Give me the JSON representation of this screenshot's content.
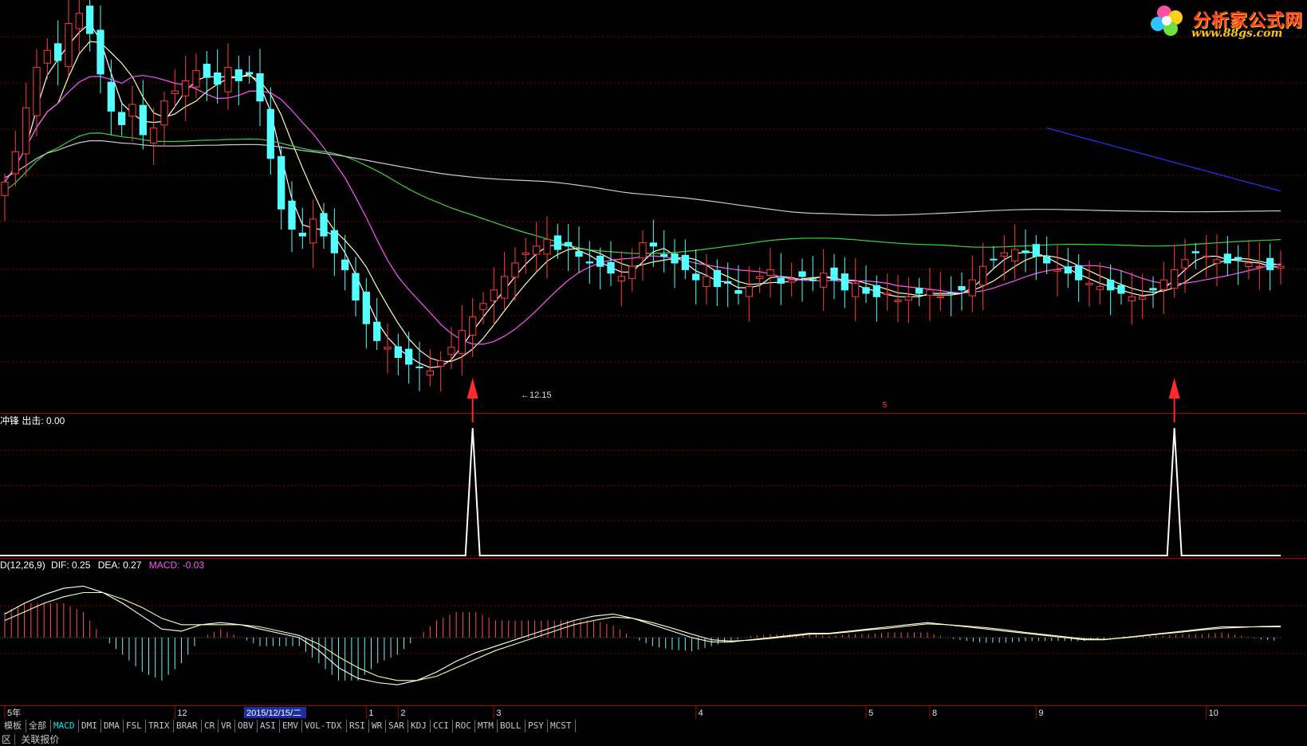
{
  "logo": {
    "brand": "分析家公式网",
    "url": "www.88gs.com"
  },
  "indicator_label": "冲锋 出击: 0.00",
  "macd_label": {
    "name": "D(12,26,9)",
    "dif": "DIF: 0.25",
    "dea": "DEA: 0.27",
    "macd": "MACD: -0.03"
  },
  "annotations": {
    "low_price": "←12.15",
    "marker": "S"
  },
  "xaxis": {
    "ticks": [
      {
        "label": "5年",
        "idx": 0
      },
      {
        "label": "12",
        "idx": 16
      },
      {
        "label": "1",
        "idx": 34
      },
      {
        "label": "2",
        "idx": 37
      },
      {
        "label": "3",
        "idx": 46
      },
      {
        "label": "4",
        "idx": 65
      },
      {
        "label": "5",
        "idx": 81
      },
      {
        "label": "8",
        "idx": 87
      },
      {
        "label": "9",
        "idx": 97
      },
      {
        "label": "10",
        "idx": 113
      }
    ],
    "cursor_date": "2015/12/15/二"
  },
  "tabs": [
    "模板",
    "全部",
    "MACD",
    "DMI",
    "DMA",
    "FSL",
    "TRIX",
    "BRAR",
    "CR",
    "VR",
    "OBV",
    "ASI",
    "EMV",
    "VOL-TDX",
    "RSI",
    "WR",
    "SAR",
    "KDJ",
    "CCI",
    "ROC",
    "MTM",
    "BOLL",
    "PSY",
    "MCST"
  ],
  "active_tab": "MACD",
  "status": [
    "区",
    "关联报价"
  ],
  "colors": {
    "up": "#ff3b3b",
    "down": "#54ffff",
    "ma5": "#ffffff",
    "ma10": "#ffffaa",
    "ma20": "#ff55ff",
    "ma60": "#3cd23c",
    "ma120": "#c8c8c8",
    "ma250": "#3030ff",
    "grid": "#8b0000",
    "dea": "#ffffaa",
    "signal_arrow": "#ff2b2b"
  },
  "chart_data": [
    {
      "type": "candlestick",
      "ylim": [
        11.5,
        23.5
      ],
      "ma_lines": [
        "MA5",
        "MA10",
        "MA20",
        "MA60",
        "MA120",
        "MA250"
      ],
      "closes": [
        18.2,
        19.1,
        20.4,
        21.6,
        22.1,
        21.8,
        22.9,
        23.2,
        22.6,
        21.4,
        20.3,
        19.9,
        20.5,
        19.6,
        19.8,
        20.6,
        20.9,
        21.2,
        21.5,
        21.3,
        21.1,
        21.6,
        21.2,
        21.4,
        20.6,
        18.9,
        17.4,
        16.8,
        16.6,
        17.1,
        16.6,
        16.1,
        15.6,
        14.7,
        14.0,
        13.5,
        13.3,
        13.0,
        12.8,
        12.7,
        12.6,
        12.9,
        13.3,
        13.8,
        14.2,
        14.6,
        15.0,
        15.4,
        15.8,
        16.1,
        16.3,
        16.5,
        16.2,
        16.3,
        16.0,
        15.8,
        15.7,
        15.5,
        15.4,
        15.7,
        16.4,
        16.3,
        16.0,
        15.8,
        15.6,
        15.3,
        15.4,
        15.1,
        15.2,
        14.9,
        15.1,
        15.4,
        15.6,
        15.2,
        15.3,
        15.4,
        15.3,
        15.5,
        15.3,
        15.0,
        15.2,
        14.9,
        14.8,
        14.9,
        14.7,
        14.8,
        14.9,
        15.0,
        14.8,
        14.9,
        15.0,
        15.3,
        15.7,
        15.9,
        16.1,
        16.2,
        16.1,
        16.0,
        15.8,
        15.6,
        15.5,
        15.3,
        15.2,
        15.1,
        15.0,
        14.9,
        14.8,
        14.8,
        15.0,
        15.3,
        15.6,
        15.9,
        16.1,
        16.0,
        15.9,
        15.8,
        15.9,
        15.8,
        15.7,
        15.6,
        15.7
      ],
      "low_annotation": 12.15,
      "signal_bars": [
        44,
        110
      ]
    },
    {
      "type": "line",
      "name": "冲锋",
      "ylim": [
        0,
        1
      ],
      "values_description": "zero everywhere except spikes",
      "spikes": [
        44,
        110
      ]
    },
    {
      "type": "bar",
      "name": "MACD",
      "ylim": [
        -1.3,
        1.3
      ],
      "dif": [
        0.55,
        0.8,
        1.0,
        1.15,
        1.2,
        1.05,
        0.8,
        0.5,
        0.2,
        0.15,
        0.3,
        0.35,
        0.3,
        0.2,
        0.1,
        0.0,
        -0.3,
        -0.7,
        -0.95,
        -1.05,
        -1.1,
        -1.0,
        -0.8,
        -0.55,
        -0.35,
        -0.2,
        -0.05,
        0.1,
        0.25,
        0.4,
        0.5,
        0.55,
        0.45,
        0.3,
        0.15,
        0.0,
        -0.1,
        -0.1,
        -0.05,
        0.0,
        0.05,
        0.1,
        0.1,
        0.15,
        0.2,
        0.25,
        0.3,
        0.35,
        0.3,
        0.25,
        0.2,
        0.15,
        0.1,
        0.05,
        0.0,
        -0.05,
        -0.05,
        0.0,
        0.05,
        0.1,
        0.15,
        0.2,
        0.25,
        0.25,
        0.25,
        0.25
      ],
      "dea": [
        0.4,
        0.6,
        0.8,
        0.95,
        1.05,
        1.05,
        0.9,
        0.7,
        0.45,
        0.3,
        0.3,
        0.3,
        0.3,
        0.25,
        0.15,
        0.05,
        -0.15,
        -0.45,
        -0.7,
        -0.9,
        -1.0,
        -1.0,
        -0.9,
        -0.7,
        -0.5,
        -0.3,
        -0.15,
        0.0,
        0.15,
        0.3,
        0.4,
        0.48,
        0.45,
        0.35,
        0.22,
        0.08,
        -0.05,
        -0.08,
        -0.06,
        -0.02,
        0.03,
        0.08,
        0.09,
        0.13,
        0.18,
        0.22,
        0.27,
        0.32,
        0.3,
        0.27,
        0.23,
        0.18,
        0.12,
        0.07,
        0.02,
        -0.03,
        -0.04,
        -0.01,
        0.04,
        0.09,
        0.13,
        0.18,
        0.22,
        0.24,
        0.26,
        0.27
      ]
    }
  ]
}
